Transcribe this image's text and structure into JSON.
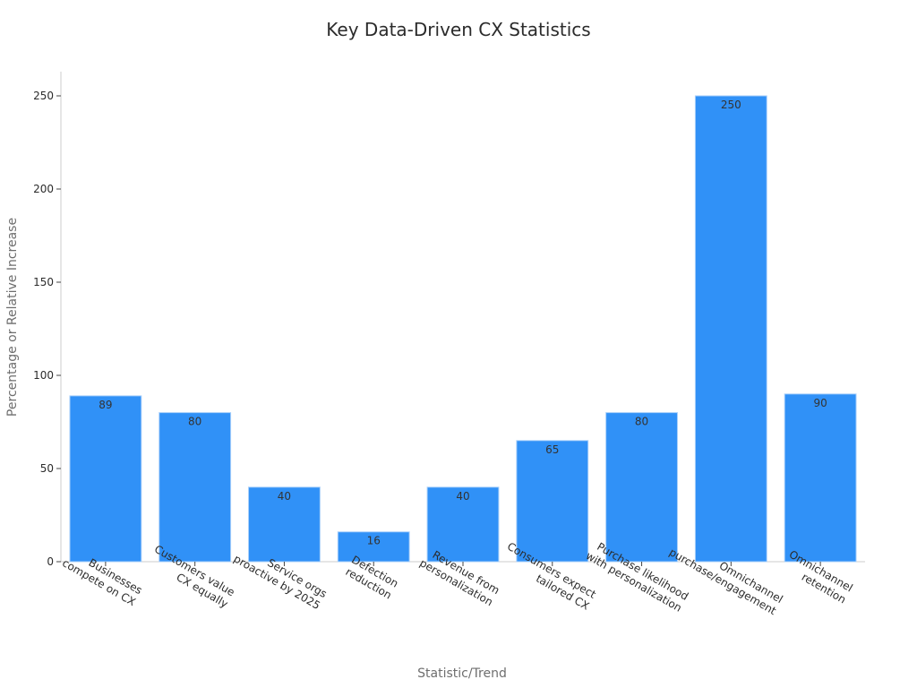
{
  "chart_data": {
    "type": "bar",
    "title": "Key Data-Driven CX Statistics",
    "xlabel": "Statistic/Trend",
    "ylabel": "Percentage or Relative Increase",
    "categories": [
      [
        "Businesses",
        "compete on CX"
      ],
      [
        "Customers value",
        "CX equally"
      ],
      [
        "Service orgs",
        "proactive by 2025"
      ],
      [
        "Defection",
        "reduction"
      ],
      [
        "Revenue from",
        "personalization"
      ],
      [
        "Consumers expect",
        "tailored CX"
      ],
      [
        "Purchase likelihood",
        "with personalization"
      ],
      [
        "Omnichannel",
        "purchase/engagement"
      ],
      [
        "Omnichannel",
        "retention"
      ]
    ],
    "values": [
      89,
      80,
      40,
      16,
      40,
      65,
      80,
      250,
      90
    ],
    "data_labels": [
      "89",
      "80",
      "40",
      "16",
      "40",
      "65",
      "80",
      "250",
      "90"
    ],
    "ylim": [
      0,
      262
    ],
    "yticks": [
      0,
      50,
      100,
      150,
      200,
      250
    ],
    "grid": false,
    "legend": "none",
    "bar_color": "#3091f7",
    "bar_edge_color": "#a8cffa"
  }
}
